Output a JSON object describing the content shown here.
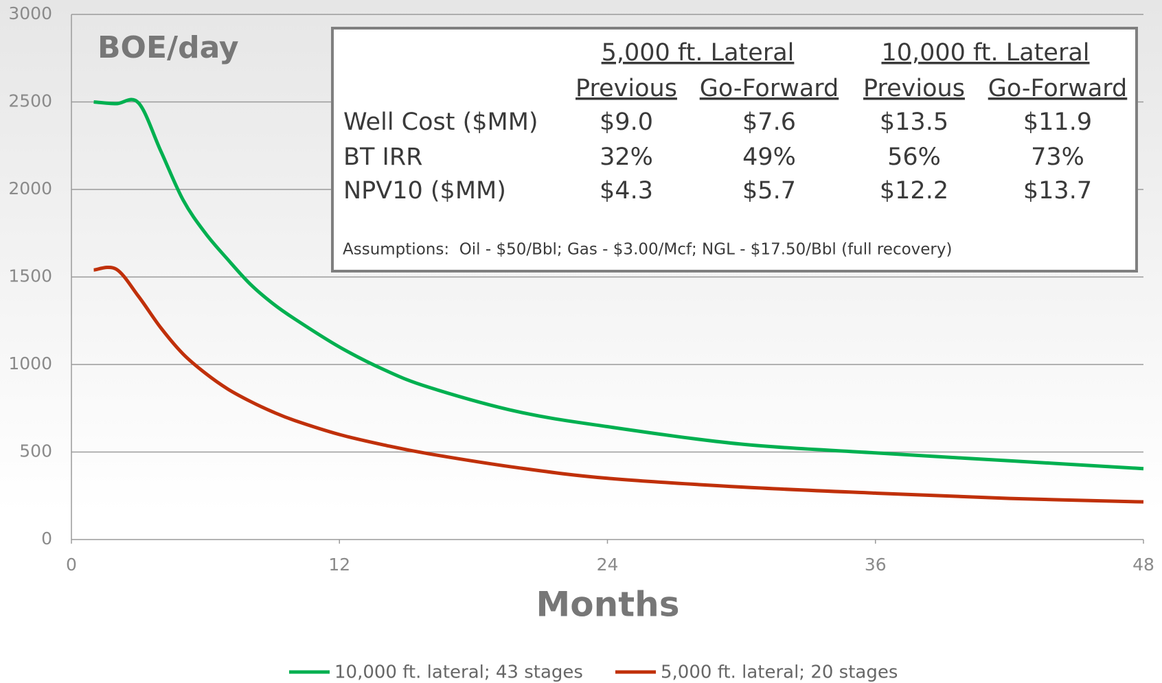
{
  "chart_data": {
    "type": "line",
    "annotation": "BOE/day",
    "x_label": "Months",
    "x": [
      1,
      2,
      3,
      4,
      5,
      6,
      7,
      8,
      9,
      10,
      12,
      14,
      16,
      20,
      24,
      30,
      36,
      42,
      48
    ],
    "series": [
      {
        "name": "10,000 ft. lateral; 43 stages",
        "color": "#00b050",
        "values": [
          2500,
          2490,
          2495,
          2220,
          1940,
          1750,
          1600,
          1460,
          1350,
          1260,
          1100,
          970,
          870,
          730,
          645,
          545,
          495,
          450,
          405
        ]
      },
      {
        "name": "5,000 ft. lateral; 20 stages",
        "color": "#c0300a",
        "values": [
          1540,
          1545,
          1390,
          1210,
          1060,
          950,
          860,
          790,
          730,
          680,
          600,
          540,
          490,
          410,
          350,
          300,
          265,
          235,
          215
        ]
      }
    ],
    "xlim": [
      0,
      48
    ],
    "xticks": [
      0,
      12,
      24,
      36,
      48
    ],
    "ylim": [
      0,
      3000
    ],
    "yticks": [
      0,
      500,
      1000,
      1500,
      2000,
      2500,
      3000
    ],
    "grid": true,
    "legend": "bottom"
  },
  "table": {
    "groups": [
      "5,000 ft. Lateral",
      "10,000 ft. Lateral"
    ],
    "columns": [
      "Previous",
      "Go-Forward",
      "Previous",
      "Go-Forward"
    ],
    "rows": [
      [
        "Well Cost ($MM)",
        "$9.0",
        "$7.6",
        "$13.5",
        "$11.9"
      ],
      [
        "BT IRR",
        "32%",
        "49%",
        "56%",
        "73%"
      ],
      [
        "NPV10 ($MM)",
        "$4.3",
        "$5.7",
        "$12.2",
        "$13.7"
      ]
    ],
    "footnote": "Assumptions:  Oil - $50/Bbl; Gas - $3.00/Mcf; NGL - $17.50/Bbl (full recovery)"
  }
}
